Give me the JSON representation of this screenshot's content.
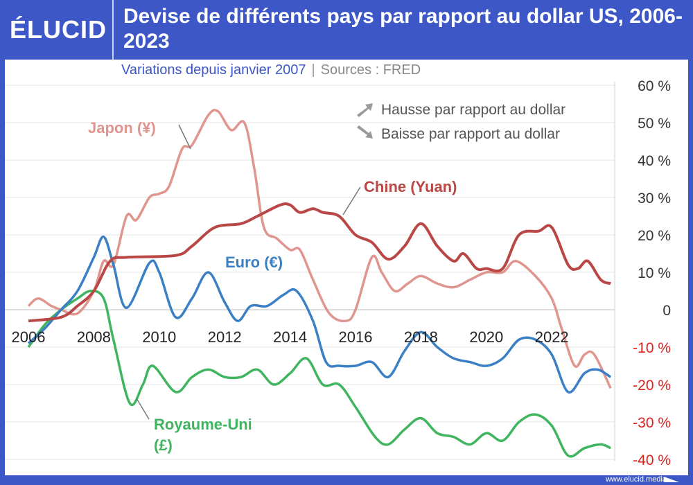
{
  "header": {
    "logo": "ÉLUCID",
    "title": "Devise de différents pays par rapport au dollar US, 2006-2023"
  },
  "subtitle": {
    "text": "Variations depuis janvier 2007",
    "separator": "|",
    "source": "Sources : FRED"
  },
  "footer": {
    "url": "www.elucid.media"
  },
  "legend": {
    "up": "Hausse par rapport au dollar",
    "down": "Baisse par rapport au dollar"
  },
  "chart_data": {
    "type": "line",
    "title": "Devise de différents pays par rapport au dollar US, 2006-2023",
    "subtitle": "Variations depuis janvier 2007",
    "xlim": [
      2006,
      2023.8
    ],
    "ylim": [
      -40,
      60
    ],
    "x_ticks": [
      "2006",
      "2008",
      "2010",
      "2012",
      "2014",
      "2016",
      "2018",
      "2020",
      "2022"
    ],
    "y_ticks": [
      "60 %",
      "50 %",
      "40 %",
      "30 %",
      "20 %",
      "10 %",
      "0",
      "-10 %",
      "-20 %",
      "-30 %",
      "-40 %"
    ],
    "y_tick_values": [
      60,
      50,
      40,
      30,
      20,
      10,
      0,
      -10,
      -20,
      -30,
      -40
    ],
    "grid": true,
    "series": [
      {
        "name": "Japon (¥)",
        "color": "#e0958f",
        "points": [
          [
            2006,
            1
          ],
          [
            2006.3,
            3
          ],
          [
            2006.7,
            1
          ],
          [
            2007,
            0
          ],
          [
            2007.5,
            -1
          ],
          [
            2008,
            5
          ],
          [
            2008.3,
            13
          ],
          [
            2008.6,
            12
          ],
          [
            2009,
            25
          ],
          [
            2009.3,
            24
          ],
          [
            2009.7,
            30
          ],
          [
            2010,
            31
          ],
          [
            2010.3,
            33
          ],
          [
            2010.7,
            43
          ],
          [
            2011,
            44
          ],
          [
            2011.5,
            52
          ],
          [
            2011.8,
            53
          ],
          [
            2012.2,
            48
          ],
          [
            2012.6,
            50
          ],
          [
            2012.9,
            38
          ],
          [
            2013.2,
            22
          ],
          [
            2013.6,
            19
          ],
          [
            2014,
            16
          ],
          [
            2014.3,
            16
          ],
          [
            2014.7,
            8
          ],
          [
            2015.2,
            -1
          ],
          [
            2015.7,
            -3
          ],
          [
            2016,
            0
          ],
          [
            2016.5,
            14
          ],
          [
            2016.8,
            10
          ],
          [
            2017.2,
            5
          ],
          [
            2017.6,
            7
          ],
          [
            2018,
            9
          ],
          [
            2018.5,
            7
          ],
          [
            2019,
            6
          ],
          [
            2019.5,
            8
          ],
          [
            2020,
            10
          ],
          [
            2020.5,
            10
          ],
          [
            2020.9,
            13
          ],
          [
            2021.5,
            9
          ],
          [
            2022,
            3
          ],
          [
            2022.3,
            -5
          ],
          [
            2022.7,
            -15
          ],
          [
            2023,
            -12
          ],
          [
            2023.3,
            -12
          ],
          [
            2023.8,
            -21
          ]
        ]
      },
      {
        "name": "Chine (Yuan)",
        "color": "#b84745",
        "points": [
          [
            2006,
            -3
          ],
          [
            2007,
            -2
          ],
          [
            2007.5,
            1
          ],
          [
            2008,
            5
          ],
          [
            2008.5,
            13
          ],
          [
            2009,
            14
          ],
          [
            2010.5,
            14.5
          ],
          [
            2011,
            17
          ],
          [
            2011.7,
            22
          ],
          [
            2012.5,
            23
          ],
          [
            2013,
            25
          ],
          [
            2013.7,
            28
          ],
          [
            2014,
            28
          ],
          [
            2014.3,
            26
          ],
          [
            2014.7,
            27
          ],
          [
            2015,
            26
          ],
          [
            2015.5,
            25
          ],
          [
            2016,
            20
          ],
          [
            2016.5,
            18
          ],
          [
            2017,
            13.5
          ],
          [
            2017.5,
            17
          ],
          [
            2018,
            23
          ],
          [
            2018.5,
            17
          ],
          [
            2019,
            13
          ],
          [
            2019.3,
            15
          ],
          [
            2019.7,
            11
          ],
          [
            2020,
            11
          ],
          [
            2020.5,
            11
          ],
          [
            2021,
            20
          ],
          [
            2021.6,
            21
          ],
          [
            2022,
            22
          ],
          [
            2022.5,
            12
          ],
          [
            2022.8,
            11
          ],
          [
            2023.1,
            13
          ],
          [
            2023.5,
            8
          ],
          [
            2023.8,
            7
          ]
        ]
      },
      {
        "name": "Euro (€)",
        "color": "#3b7fc4",
        "points": [
          [
            2006,
            -9
          ],
          [
            2006.5,
            -5
          ],
          [
            2007,
            0
          ],
          [
            2007.5,
            5
          ],
          [
            2008,
            14
          ],
          [
            2008.3,
            19.5
          ],
          [
            2008.6,
            12
          ],
          [
            2009,
            0.5
          ],
          [
            2009.7,
            12.5
          ],
          [
            2010,
            10
          ],
          [
            2010.5,
            -2
          ],
          [
            2011,
            3
          ],
          [
            2011.5,
            10
          ],
          [
            2012,
            2
          ],
          [
            2012.4,
            -3
          ],
          [
            2012.8,
            1
          ],
          [
            2013.3,
            1
          ],
          [
            2013.8,
            4
          ],
          [
            2014.2,
            5
          ],
          [
            2014.7,
            -3
          ],
          [
            2015.1,
            -14
          ],
          [
            2015.5,
            -15
          ],
          [
            2016,
            -15
          ],
          [
            2016.5,
            -14
          ],
          [
            2017,
            -18
          ],
          [
            2017.5,
            -11
          ],
          [
            2018,
            -6
          ],
          [
            2018.5,
            -10
          ],
          [
            2019,
            -13
          ],
          [
            2019.5,
            -14
          ],
          [
            2020,
            -15
          ],
          [
            2020.5,
            -13
          ],
          [
            2021,
            -8
          ],
          [
            2021.5,
            -8
          ],
          [
            2022,
            -12
          ],
          [
            2022.5,
            -22
          ],
          [
            2023,
            -17
          ],
          [
            2023.4,
            -16
          ],
          [
            2023.8,
            -18
          ]
        ]
      },
      {
        "name": "Royaume-Uni (£)",
        "color": "#3fb55f",
        "points": [
          [
            2006,
            -10
          ],
          [
            2006.5,
            -4
          ],
          [
            2007,
            0
          ],
          [
            2007.5,
            3
          ],
          [
            2007.9,
            5
          ],
          [
            2008.3,
            3
          ],
          [
            2008.6,
            -8
          ],
          [
            2009.1,
            -25
          ],
          [
            2009.5,
            -20
          ],
          [
            2009.8,
            -15
          ],
          [
            2010.5,
            -22
          ],
          [
            2011,
            -18
          ],
          [
            2011.5,
            -16
          ],
          [
            2012,
            -18
          ],
          [
            2012.5,
            -18
          ],
          [
            2013,
            -16
          ],
          [
            2013.5,
            -20
          ],
          [
            2014,
            -17
          ],
          [
            2014.5,
            -13
          ],
          [
            2015,
            -20
          ],
          [
            2015.5,
            -20
          ],
          [
            2016,
            -26
          ],
          [
            2016.6,
            -34
          ],
          [
            2017,
            -36
          ],
          [
            2017.5,
            -32
          ],
          [
            2018,
            -29
          ],
          [
            2018.5,
            -33
          ],
          [
            2019,
            -34
          ],
          [
            2019.5,
            -36
          ],
          [
            2020,
            -33
          ],
          [
            2020.5,
            -35
          ],
          [
            2021,
            -30
          ],
          [
            2021.5,
            -28
          ],
          [
            2022,
            -31
          ],
          [
            2022.5,
            -39
          ],
          [
            2023,
            -37
          ],
          [
            2023.5,
            -36
          ],
          [
            2023.8,
            -37
          ]
        ]
      }
    ]
  }
}
